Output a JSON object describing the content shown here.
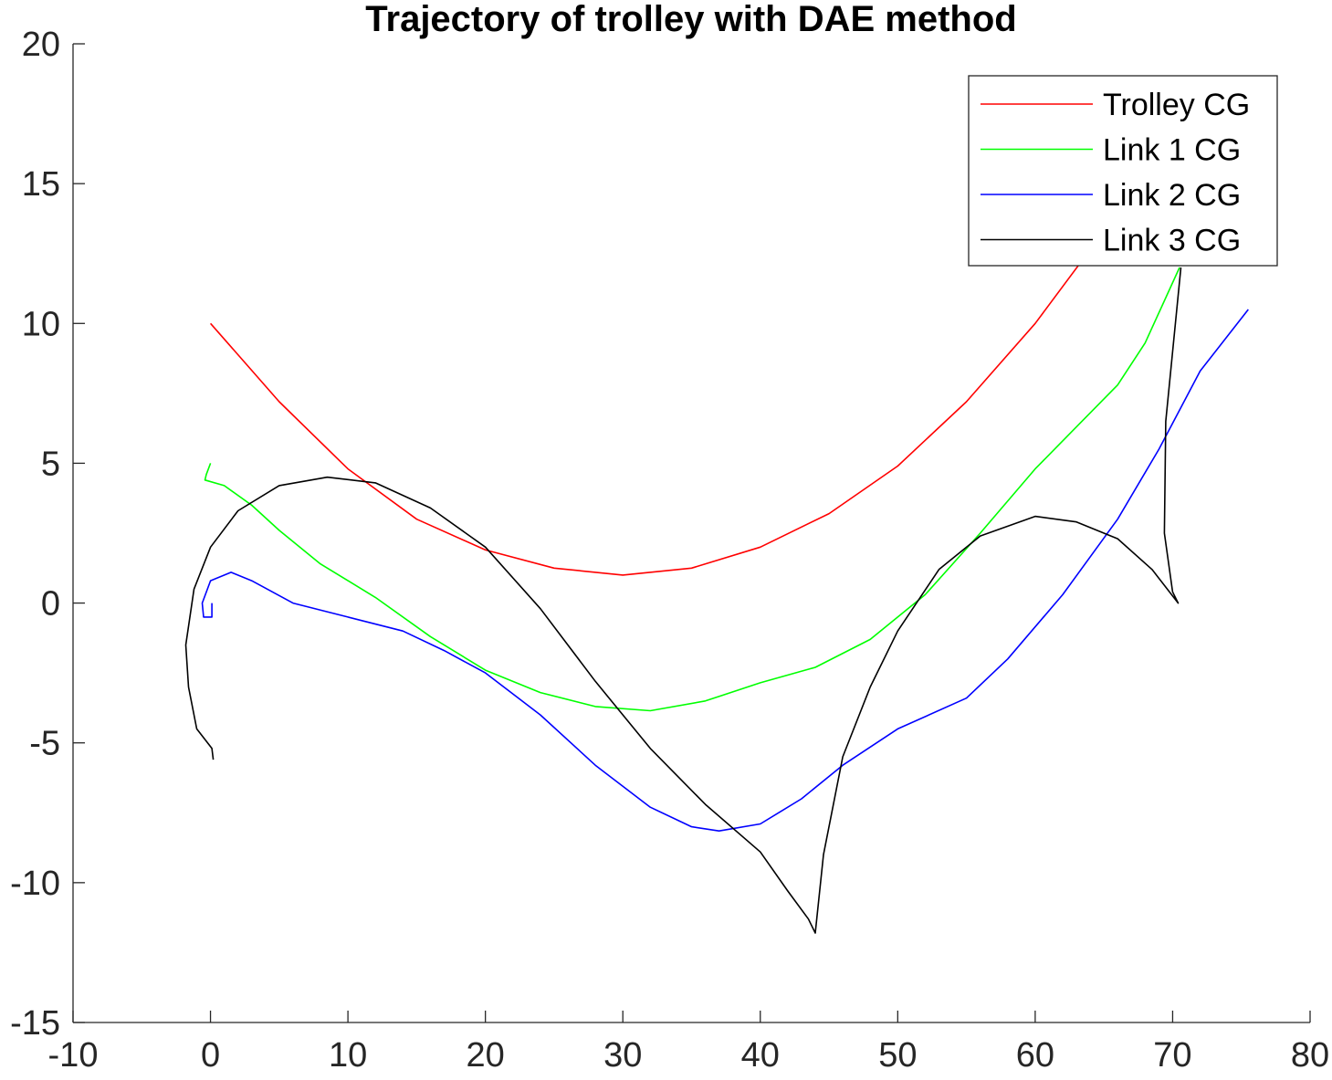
{
  "chart_data": {
    "type": "line",
    "title": "Trajectory of trolley with DAE method",
    "xlabel": "",
    "ylabel": "",
    "xlim": [
      -10,
      80
    ],
    "ylim": [
      -15,
      20
    ],
    "xticks": [
      -10,
      0,
      10,
      20,
      30,
      40,
      50,
      60,
      70,
      80
    ],
    "yticks": [
      -15,
      -10,
      -5,
      0,
      5,
      10,
      15,
      20
    ],
    "grid": false,
    "legend_position": "top-right",
    "series": [
      {
        "name": "Trolley CG",
        "color": "#ff0000",
        "points": [
          [
            0,
            10
          ],
          [
            5,
            7.2
          ],
          [
            10,
            4.8
          ],
          [
            15,
            3.0
          ],
          [
            20,
            1.9
          ],
          [
            25,
            1.25
          ],
          [
            30,
            1.0
          ],
          [
            35,
            1.25
          ],
          [
            40,
            2.0
          ],
          [
            45,
            3.2
          ],
          [
            50,
            4.9
          ],
          [
            55,
            7.2
          ],
          [
            60,
            10.0
          ],
          [
            65,
            13.3
          ]
        ]
      },
      {
        "name": "Link 1 CG",
        "color": "#00ff00",
        "points": [
          [
            0,
            5.0
          ],
          [
            -0.3,
            4.6
          ],
          [
            -0.4,
            4.4
          ],
          [
            1.0,
            4.2
          ],
          [
            3,
            3.5
          ],
          [
            5,
            2.6
          ],
          [
            8,
            1.4
          ],
          [
            12,
            0.2
          ],
          [
            16,
            -1.2
          ],
          [
            20,
            -2.4
          ],
          [
            24,
            -3.2
          ],
          [
            28,
            -3.7
          ],
          [
            32,
            -3.85
          ],
          [
            36,
            -3.5
          ],
          [
            40,
            -2.85
          ],
          [
            44,
            -2.3
          ],
          [
            48,
            -1.3
          ],
          [
            52,
            0.3
          ],
          [
            56,
            2.5
          ],
          [
            60,
            4.8
          ],
          [
            63,
            6.3
          ],
          [
            66,
            7.8
          ],
          [
            68,
            9.3
          ],
          [
            70.5,
            12.0
          ]
        ]
      },
      {
        "name": "Link 2 CG",
        "color": "#0000ff",
        "points": [
          [
            0.1,
            0
          ],
          [
            0.1,
            -0.5
          ],
          [
            -0.5,
            -0.5
          ],
          [
            -0.6,
            0
          ],
          [
            0,
            0.8
          ],
          [
            1.5,
            1.1
          ],
          [
            3,
            0.8
          ],
          [
            6,
            0
          ],
          [
            10,
            -0.5
          ],
          [
            14,
            -1.0
          ],
          [
            17,
            -1.7
          ],
          [
            20,
            -2.5
          ],
          [
            24,
            -4.0
          ],
          [
            28,
            -5.8
          ],
          [
            32,
            -7.3
          ],
          [
            35,
            -8.0
          ],
          [
            37,
            -8.15
          ],
          [
            40,
            -7.9
          ],
          [
            43,
            -7.0
          ],
          [
            46,
            -5.8
          ],
          [
            50,
            -4.5
          ],
          [
            55,
            -3.4
          ],
          [
            58,
            -2.0
          ],
          [
            62,
            0.3
          ],
          [
            66,
            3.0
          ],
          [
            69,
            5.5
          ],
          [
            72,
            8.3
          ],
          [
            75.5,
            10.5
          ]
        ]
      },
      {
        "name": "Link 3 CG",
        "color": "#000000",
        "points": [
          [
            0.2,
            -5.6
          ],
          [
            0.1,
            -5.2
          ],
          [
            -1,
            -4.5
          ],
          [
            -1.6,
            -3.0
          ],
          [
            -1.8,
            -1.5
          ],
          [
            -1.2,
            0.5
          ],
          [
            0,
            2.0
          ],
          [
            2,
            3.3
          ],
          [
            5,
            4.2
          ],
          [
            8.5,
            4.5
          ],
          [
            12,
            4.3
          ],
          [
            16,
            3.4
          ],
          [
            20,
            2.0
          ],
          [
            24,
            -0.2
          ],
          [
            28,
            -2.8
          ],
          [
            32,
            -5.2
          ],
          [
            36,
            -7.2
          ],
          [
            40,
            -8.9
          ],
          [
            42,
            -10.3
          ],
          [
            43.5,
            -11.3
          ],
          [
            44,
            -11.8
          ],
          [
            44.6,
            -9.0
          ],
          [
            46,
            -5.5
          ],
          [
            48,
            -3.0
          ],
          [
            50,
            -1.0
          ],
          [
            53,
            1.2
          ],
          [
            56,
            2.4
          ],
          [
            60,
            3.1
          ],
          [
            63,
            2.9
          ],
          [
            66,
            2.3
          ],
          [
            68.5,
            1.2
          ],
          [
            70.4,
            0
          ],
          [
            70.0,
            0.4
          ],
          [
            69.4,
            2.5
          ],
          [
            69.5,
            6.5
          ],
          [
            70.6,
            12.0
          ]
        ]
      }
    ]
  }
}
